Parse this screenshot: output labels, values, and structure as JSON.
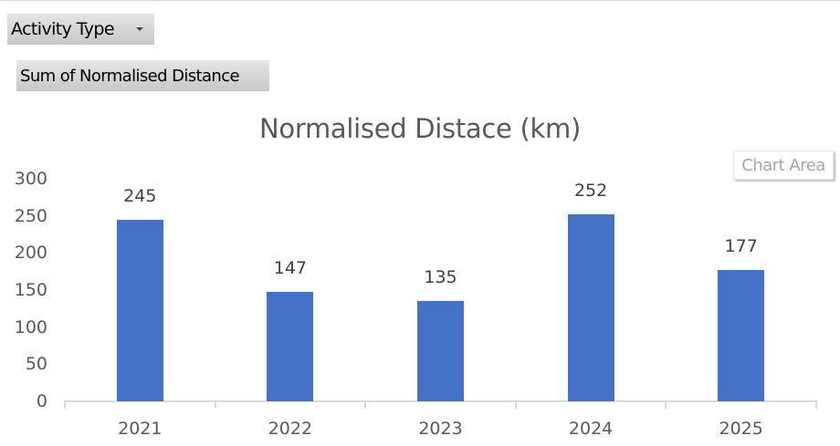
{
  "pivot_fields": {
    "filter_button": {
      "label": "Activity Type",
      "icon": "dropdown-arrow-icon"
    },
    "value_button": {
      "label": "Sum of Normalised Distance"
    }
  },
  "tooltip": {
    "text": "Chart Area"
  },
  "colors": {
    "bar": "#4472c4",
    "axis": "#d9d9d9",
    "text": "#595959"
  },
  "chart_data": {
    "type": "bar",
    "title": "Normalised Distace (km)",
    "categories": [
      "2021",
      "2022",
      "2023",
      "2024",
      "2025"
    ],
    "values": [
      245,
      147,
      135,
      252,
      177
    ],
    "data_labels": [
      "245",
      "147",
      "135",
      "252",
      "177"
    ],
    "xlabel": "",
    "ylabel": "",
    "ylim": [
      0,
      300
    ],
    "yticks": [
      "0",
      "50",
      "100",
      "150",
      "200",
      "250",
      "300"
    ],
    "grid": false,
    "legend": "none"
  }
}
